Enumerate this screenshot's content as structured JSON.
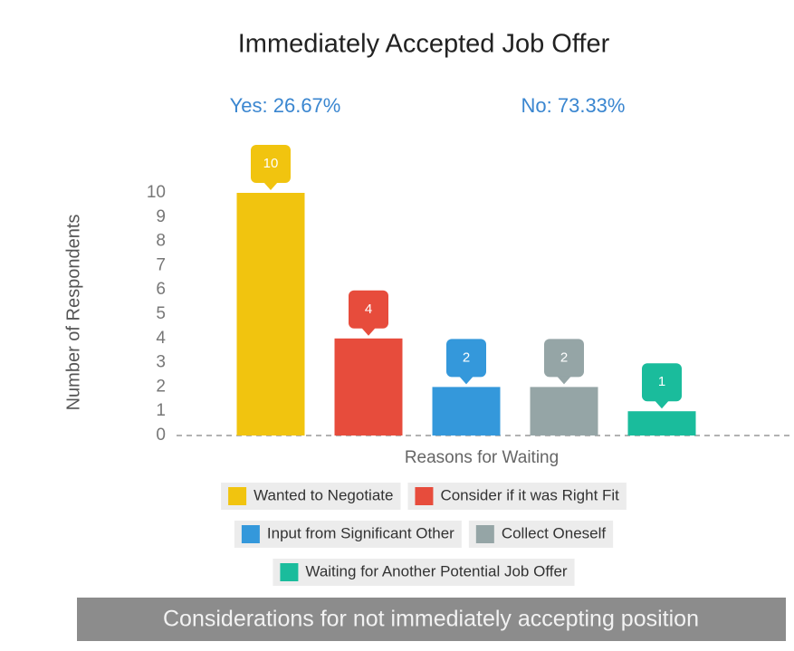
{
  "chart_data": {
    "type": "bar",
    "title": "Immediately Accepted Job Offer",
    "annotations": [
      "Yes: 26.67%",
      "No: 73.33%"
    ],
    "y_label": "Number of Respondents",
    "x_label": "Reasons for Waiting",
    "footer": "Considerations for not immediately accepting position",
    "categories": [
      "Wanted to Negotiate",
      "Consider if it was Right Fit",
      "Input from Significant Other",
      "Collect Oneself",
      "Waiting for Another Potential Job Offer"
    ],
    "values": [
      10,
      4,
      2,
      2,
      1
    ],
    "colors": [
      "#f1c40f",
      "#e74c3c",
      "#3498db",
      "#95a5a6",
      "#1abc9c"
    ],
    "ylim": [
      0,
      10
    ],
    "yticks": [
      0,
      1,
      2,
      3,
      4,
      5,
      6,
      7,
      8,
      9,
      10
    ]
  }
}
